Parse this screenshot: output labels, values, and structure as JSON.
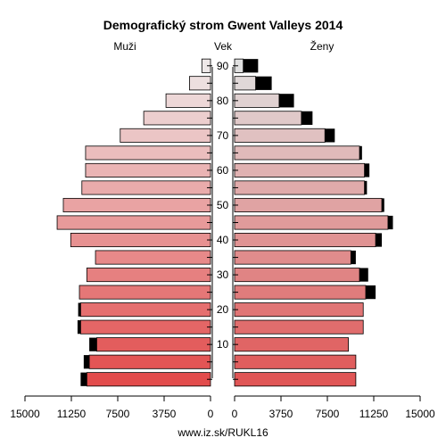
{
  "chart_data": {
    "type": "bar",
    "title": "Demografický strom Gwent Valleys 2014",
    "left_label": "Muži",
    "center_label": "Vek",
    "right_label": "Ženy",
    "footer": "www.iz.sk/RUKL16",
    "x_ticks_left": [
      "15000",
      "11250",
      "7500",
      "3750",
      "0"
    ],
    "x_ticks_right": [
      "0",
      "3750",
      "7500",
      "11250",
      "15000"
    ],
    "xlim": [
      0,
      15000
    ],
    "age_ticks": [
      "10",
      "20",
      "30",
      "40",
      "50",
      "60",
      "70",
      "80",
      "90"
    ],
    "age_groups": [
      "0-4",
      "5-9",
      "10-14",
      "15-19",
      "20-24",
      "25-29",
      "30-34",
      "35-39",
      "40-44",
      "45-49",
      "50-54",
      "55-59",
      "60-64",
      "65-69",
      "70-74",
      "75-79",
      "80-84",
      "85-89",
      "90+"
    ],
    "series": [
      {
        "name": "Muži",
        "values": [
          10000,
          9800,
          9200,
          10500,
          10500,
          10600,
          10000,
          9300,
          11300,
          12400,
          11900,
          10400,
          10100,
          10100,
          7300,
          5400,
          3600,
          1700,
          700
        ],
        "excess": [
          500,
          450,
          600,
          250,
          200,
          0,
          0,
          0,
          0,
          0,
          0,
          0,
          0,
          0,
          0,
          0,
          0,
          0,
          0
        ]
      },
      {
        "name": "Ženy",
        "values": [
          9800,
          9800,
          9200,
          10400,
          10400,
          10600,
          10100,
          9400,
          11400,
          12400,
          11900,
          10500,
          10500,
          10100,
          7300,
          5400,
          3600,
          1700,
          700
        ],
        "excess": [
          0,
          0,
          0,
          0,
          0,
          0,
          0,
          0,
          0,
          0,
          0,
          0,
          0,
          0,
          0,
          0,
          0,
          0,
          0
        ]
      }
    ],
    "excess_women": [
      0,
      0,
      0,
      0,
      0,
      800,
      700,
      400,
      500,
      400,
      200,
      200,
      400,
      200,
      800,
      900,
      1200,
      1300,
      1200
    ]
  }
}
